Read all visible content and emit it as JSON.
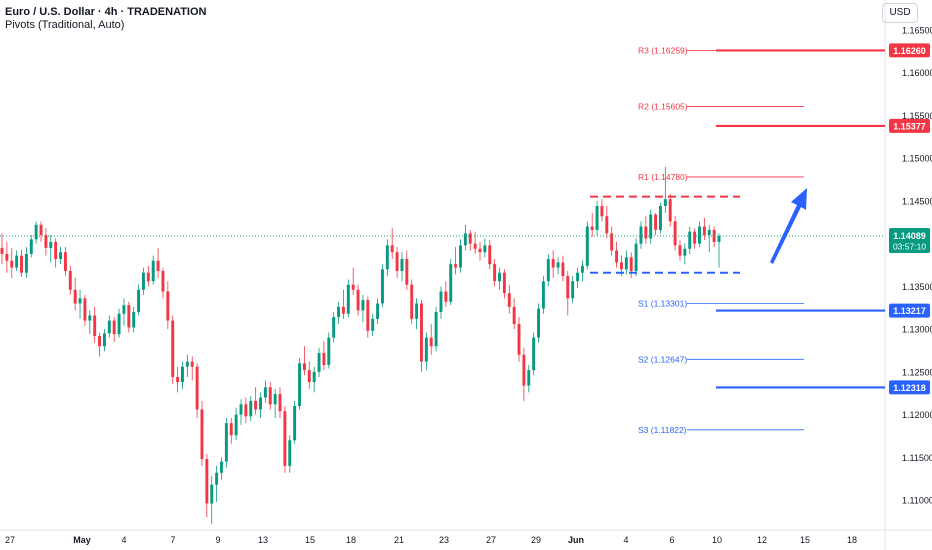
{
  "header": {
    "title": "Euro / U.S. Dollar · 4h · TRADENATION",
    "indicator": "Pivots (Traditional, Auto)",
    "currency": "USD"
  },
  "colors": {
    "up": "#089981",
    "down": "#f23645",
    "resistance": "#f23645",
    "support": "#2962ff",
    "arrow": "#2962ff",
    "price_line": "#089981"
  },
  "chart_data": {
    "type": "candlestick",
    "symbol": "EURUSD",
    "timeframe": "4h",
    "x_ticks": [
      "27",
      "May",
      "4",
      "7",
      "9",
      "13",
      "15",
      "18",
      "21",
      "23",
      "27",
      "29",
      "Jun",
      "4",
      "6",
      "10",
      "12",
      "15",
      "18"
    ],
    "y_ticks": [
      1.165,
      1.16,
      1.155,
      1.15,
      1.145,
      1.135,
      1.13,
      1.125,
      1.12,
      1.115,
      1.11
    ],
    "ylim": [
      1.1065,
      1.1685
    ],
    "last_price": {
      "value": "1.14089",
      "countdown": "03:57:10"
    },
    "pivots": [
      {
        "label": "R3 (1.16259)",
        "value": 1.16259,
        "kind": "resistance"
      },
      {
        "label": "R2 (1.15605)",
        "value": 1.15605,
        "kind": "resistance"
      },
      {
        "label": "R1 (1.14780)",
        "value": 1.1478,
        "kind": "resistance"
      },
      {
        "label": "S1 (1.13301)",
        "value": 1.13301,
        "kind": "support"
      },
      {
        "label": "S2 (1.12647)",
        "value": 1.12647,
        "kind": "support"
      },
      {
        "label": "S3 (1.11822)",
        "value": 1.11822,
        "kind": "support"
      }
    ],
    "price_tags": [
      {
        "value": "1.16260",
        "kind": "resistance"
      },
      {
        "value": "1.15377",
        "kind": "resistance"
      },
      {
        "value": "1.13217",
        "kind": "support"
      },
      {
        "value": "1.12318",
        "kind": "support"
      }
    ],
    "range_lines": [
      {
        "kind": "resistance",
        "value": 1.1455
      },
      {
        "kind": "support",
        "value": 1.1366
      }
    ],
    "candles": [
      [
        1.1395,
        1.1412,
        1.1376,
        1.1388
      ],
      [
        1.1388,
        1.1402,
        1.1366,
        1.138
      ],
      [
        1.138,
        1.1395,
        1.136,
        1.1372
      ],
      [
        1.1372,
        1.1392,
        1.1368,
        1.1386
      ],
      [
        1.1386,
        1.1393,
        1.1361,
        1.1366
      ],
      [
        1.1366,
        1.1396,
        1.136,
        1.1388
      ],
      [
        1.1388,
        1.141,
        1.1384,
        1.1405
      ],
      [
        1.1405,
        1.1426,
        1.14,
        1.1422
      ],
      [
        1.1422,
        1.1426,
        1.1402,
        1.141
      ],
      [
        1.141,
        1.1418,
        1.1386,
        1.1395
      ],
      [
        1.1395,
        1.141,
        1.1378,
        1.1402
      ],
      [
        1.1402,
        1.1406,
        1.1372,
        1.1382
      ],
      [
        1.1382,
        1.1396,
        1.1376,
        1.139
      ],
      [
        1.139,
        1.1396,
        1.1362,
        1.1368
      ],
      [
        1.1368,
        1.1374,
        1.134,
        1.1346
      ],
      [
        1.1346,
        1.136,
        1.1322,
        1.133
      ],
      [
        1.133,
        1.1346,
        1.1312,
        1.1336
      ],
      [
        1.1336,
        1.134,
        1.1304,
        1.131
      ],
      [
        1.131,
        1.1322,
        1.1294,
        1.1316
      ],
      [
        1.1316,
        1.1326,
        1.1284,
        1.1292
      ],
      [
        1.1292,
        1.1296,
        1.1268,
        1.128
      ],
      [
        1.128,
        1.13,
        1.1274,
        1.1295
      ],
      [
        1.1295,
        1.1316,
        1.129,
        1.131
      ],
      [
        1.131,
        1.1314,
        1.1285,
        1.1294
      ],
      [
        1.1294,
        1.1324,
        1.129,
        1.1318
      ],
      [
        1.1318,
        1.1336,
        1.1304,
        1.1328
      ],
      [
        1.1328,
        1.1332,
        1.1296,
        1.1302
      ],
      [
        1.1302,
        1.1326,
        1.1296,
        1.132
      ],
      [
        1.132,
        1.1352,
        1.1316,
        1.1346
      ],
      [
        1.1346,
        1.1372,
        1.134,
        1.1366
      ],
      [
        1.1366,
        1.1374,
        1.135,
        1.1356
      ],
      [
        1.1356,
        1.1386,
        1.1352,
        1.138
      ],
      [
        1.138,
        1.1395,
        1.136,
        1.1368
      ],
      [
        1.1368,
        1.1372,
        1.1336,
        1.1344
      ],
      [
        1.1344,
        1.1356,
        1.13,
        1.131
      ],
      [
        1.131,
        1.1316,
        1.1236,
        1.1244
      ],
      [
        1.1244,
        1.1256,
        1.1226,
        1.1238
      ],
      [
        1.1238,
        1.1262,
        1.123,
        1.1256
      ],
      [
        1.1256,
        1.127,
        1.1244,
        1.1262
      ],
      [
        1.1262,
        1.1268,
        1.124,
        1.1256
      ],
      [
        1.1256,
        1.126,
        1.1196,
        1.1206
      ],
      [
        1.1206,
        1.1216,
        1.114,
        1.1148
      ],
      [
        1.1148,
        1.1154,
        1.108,
        1.1096
      ],
      [
        1.1096,
        1.1128,
        1.1072,
        1.1118
      ],
      [
        1.1118,
        1.114,
        1.1098,
        1.1132
      ],
      [
        1.1132,
        1.115,
        1.1124,
        1.1145
      ],
      [
        1.1145,
        1.1196,
        1.1138,
        1.119
      ],
      [
        1.119,
        1.1196,
        1.1166,
        1.1176
      ],
      [
        1.1176,
        1.1208,
        1.117,
        1.12
      ],
      [
        1.12,
        1.1218,
        1.1188,
        1.1212
      ],
      [
        1.1212,
        1.122,
        1.119,
        1.1198
      ],
      [
        1.1198,
        1.1222,
        1.1192,
        1.1216
      ],
      [
        1.1216,
        1.1232,
        1.12,
        1.1206
      ],
      [
        1.1206,
        1.1226,
        1.1196,
        1.122
      ],
      [
        1.122,
        1.124,
        1.1214,
        1.1232
      ],
      [
        1.1232,
        1.1238,
        1.1206,
        1.1212
      ],
      [
        1.1212,
        1.123,
        1.1196,
        1.1224
      ],
      [
        1.1224,
        1.1232,
        1.1196,
        1.1204
      ],
      [
        1.1204,
        1.121,
        1.1132,
        1.114
      ],
      [
        1.114,
        1.1176,
        1.1132,
        1.117
      ],
      [
        1.117,
        1.1216,
        1.1166,
        1.121
      ],
      [
        1.121,
        1.1266,
        1.1206,
        1.126
      ],
      [
        1.126,
        1.128,
        1.1246,
        1.1252
      ],
      [
        1.1252,
        1.1262,
        1.123,
        1.1238
      ],
      [
        1.1238,
        1.1256,
        1.1226,
        1.125
      ],
      [
        1.125,
        1.1278,
        1.1244,
        1.1272
      ],
      [
        1.1272,
        1.1286,
        1.1252,
        1.1258
      ],
      [
        1.1258,
        1.1296,
        1.1254,
        1.129
      ],
      [
        1.129,
        1.132,
        1.1284,
        1.1314
      ],
      [
        1.1314,
        1.1332,
        1.1306,
        1.1326
      ],
      [
        1.1326,
        1.1346,
        1.1312,
        1.1318
      ],
      [
        1.1318,
        1.1358,
        1.1314,
        1.1352
      ],
      [
        1.1352,
        1.1372,
        1.134,
        1.1346
      ],
      [
        1.1346,
        1.1352,
        1.1316,
        1.1322
      ],
      [
        1.1322,
        1.134,
        1.1308,
        1.1334
      ],
      [
        1.1334,
        1.1338,
        1.129,
        1.1298
      ],
      [
        1.1298,
        1.1318,
        1.1292,
        1.1312
      ],
      [
        1.1312,
        1.1336,
        1.1306,
        1.133
      ],
      [
        1.133,
        1.1376,
        1.1326,
        1.137
      ],
      [
        1.137,
        1.1405,
        1.1362,
        1.1398
      ],
      [
        1.1398,
        1.1418,
        1.1382,
        1.139
      ],
      [
        1.139,
        1.1396,
        1.136,
        1.1368
      ],
      [
        1.1368,
        1.139,
        1.1356,
        1.1382
      ],
      [
        1.1382,
        1.1392,
        1.1346,
        1.1352
      ],
      [
        1.1352,
        1.1358,
        1.1306,
        1.1312
      ],
      [
        1.1312,
        1.1336,
        1.13,
        1.133
      ],
      [
        1.133,
        1.1334,
        1.125,
        1.1262
      ],
      [
        1.1262,
        1.1296,
        1.1252,
        1.129
      ],
      [
        1.129,
        1.1306,
        1.127,
        1.128
      ],
      [
        1.128,
        1.1326,
        1.1274,
        1.132
      ],
      [
        1.132,
        1.135,
        1.1312,
        1.1344
      ],
      [
        1.1344,
        1.1356,
        1.1326,
        1.1332
      ],
      [
        1.1332,
        1.1382,
        1.1328,
        1.1376
      ],
      [
        1.1376,
        1.1396,
        1.1364,
        1.1372
      ],
      [
        1.1372,
        1.1405,
        1.1366,
        1.1398
      ],
      [
        1.1398,
        1.1422,
        1.1392,
        1.1412
      ],
      [
        1.1412,
        1.1416,
        1.1392,
        1.14
      ],
      [
        1.14,
        1.1414,
        1.1388,
        1.1394
      ],
      [
        1.1394,
        1.1402,
        1.138,
        1.139
      ],
      [
        1.139,
        1.1406,
        1.1384,
        1.1398
      ],
      [
        1.1398,
        1.1404,
        1.137,
        1.1376
      ],
      [
        1.1376,
        1.1382,
        1.135,
        1.1356
      ],
      [
        1.1356,
        1.1372,
        1.1346,
        1.1366
      ],
      [
        1.1366,
        1.137,
        1.1336,
        1.1342
      ],
      [
        1.1342,
        1.1352,
        1.1318,
        1.1326
      ],
      [
        1.1326,
        1.1336,
        1.13,
        1.1306
      ],
      [
        1.1306,
        1.1314,
        1.1262,
        1.127
      ],
      [
        1.127,
        1.1278,
        1.1216,
        1.1234
      ],
      [
        1.1234,
        1.1258,
        1.1226,
        1.1252
      ],
      [
        1.1252,
        1.1296,
        1.1246,
        1.129
      ],
      [
        1.129,
        1.133,
        1.1284,
        1.1324
      ],
      [
        1.1324,
        1.1362,
        1.1318,
        1.1356
      ],
      [
        1.1356,
        1.1388,
        1.135,
        1.1382
      ],
      [
        1.1382,
        1.1392,
        1.136,
        1.1372
      ],
      [
        1.1372,
        1.1384,
        1.1364,
        1.1378
      ],
      [
        1.1378,
        1.1386,
        1.1356,
        1.1362
      ],
      [
        1.1362,
        1.1368,
        1.1316,
        1.1336
      ],
      [
        1.1336,
        1.1362,
        1.133,
        1.1356
      ],
      [
        1.1356,
        1.1372,
        1.1348,
        1.1366
      ],
      [
        1.1366,
        1.138,
        1.1356,
        1.1374
      ],
      [
        1.1374,
        1.1426,
        1.137,
        1.142
      ],
      [
        1.142,
        1.1436,
        1.1408,
        1.1416
      ],
      [
        1.1416,
        1.145,
        1.141,
        1.1444
      ],
      [
        1.1444,
        1.1452,
        1.1426,
        1.1432
      ],
      [
        1.1432,
        1.1444,
        1.1406,
        1.1412
      ],
      [
        1.1412,
        1.142,
        1.1386,
        1.1392
      ],
      [
        1.1392,
        1.1402,
        1.1372,
        1.1378
      ],
      [
        1.1378,
        1.1386,
        1.1362,
        1.137
      ],
      [
        1.137,
        1.1392,
        1.1364,
        1.1384
      ],
      [
        1.1384,
        1.139,
        1.136,
        1.1368
      ],
      [
        1.1368,
        1.1406,
        1.1362,
        1.14
      ],
      [
        1.14,
        1.1426,
        1.1394,
        1.142
      ],
      [
        1.142,
        1.1432,
        1.14,
        1.1406
      ],
      [
        1.1406,
        1.144,
        1.14,
        1.1434
      ],
      [
        1.1434,
        1.1436,
        1.141,
        1.1416
      ],
      [
        1.1416,
        1.1448,
        1.1412,
        1.1444
      ],
      [
        1.1444,
        1.149,
        1.1436,
        1.1452
      ],
      [
        1.1452,
        1.1458,
        1.142,
        1.1426
      ],
      [
        1.1426,
        1.1432,
        1.1392,
        1.1398
      ],
      [
        1.1398,
        1.1404,
        1.138,
        1.1386
      ],
      [
        1.1386,
        1.14,
        1.1376,
        1.1394
      ],
      [
        1.1394,
        1.142,
        1.1388,
        1.1414
      ],
      [
        1.1414,
        1.1418,
        1.1394,
        1.14
      ],
      [
        1.14,
        1.1426,
        1.1396,
        1.142
      ],
      [
        1.142,
        1.143,
        1.1404,
        1.141
      ],
      [
        1.141,
        1.1422,
        1.139,
        1.1416
      ],
      [
        1.1416,
        1.142,
        1.1396,
        1.1402
      ],
      [
        1.1402,
        1.1412,
        1.1372,
        1.1409
      ]
    ]
  }
}
